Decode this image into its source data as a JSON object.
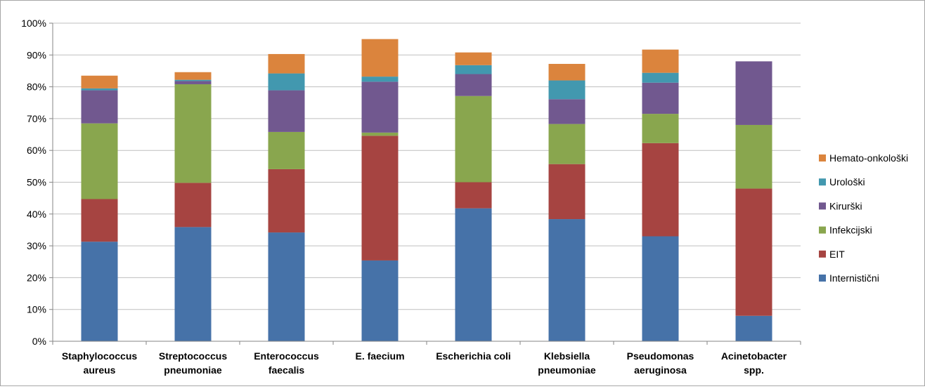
{
  "chart_data": {
    "type": "bar",
    "stacked": true,
    "title": "",
    "xlabel": "",
    "ylabel": "",
    "ylim": [
      0,
      100
    ],
    "y_ticks": [
      "0%",
      "10%",
      "20%",
      "30%",
      "40%",
      "50%",
      "60%",
      "70%",
      "80%",
      "90%",
      "100%"
    ],
    "grid": true,
    "legend_position": "right",
    "categories": [
      [
        "Staphylococcus",
        "aureus"
      ],
      [
        "Streptococcus",
        "pneumoniae"
      ],
      [
        "Enterococcus",
        "faecalis"
      ],
      [
        "E. faecium"
      ],
      [
        "Escherichia coli"
      ],
      [
        "Klebsiella",
        "pneumoniae"
      ],
      [
        "Pseudomonas",
        "aeruginosa"
      ],
      [
        "Acinetobacter",
        "spp."
      ]
    ],
    "series": [
      {
        "name": "Internistični",
        "color": "#4672A8",
        "values": [
          31.3,
          35.9,
          34.2,
          25.4,
          41.8,
          38.4,
          33.0,
          8.0
        ]
      },
      {
        "name": "EIT",
        "color": "#A64441",
        "values": [
          13.4,
          13.9,
          19.9,
          39.2,
          8.2,
          17.3,
          29.3,
          40.0
        ]
      },
      {
        "name": "Infekcijski",
        "color": "#89A64E",
        "values": [
          23.8,
          31.0,
          11.7,
          1.0,
          27.1,
          12.6,
          9.2,
          20.0
        ]
      },
      {
        "name": "Kiruški",
        "color": "#71588F",
        "values": [
          10.4,
          1.0,
          13.1,
          16.0,
          6.9,
          7.8,
          9.8,
          20.0
        ]
      },
      {
        "name": "Urološki",
        "color": "#4298AF",
        "values": [
          0.6,
          0.4,
          5.3,
          1.6,
          2.8,
          5.9,
          3.1,
          0.0
        ]
      },
      {
        "name": "Hemato-onkološki",
        "color": "#DB843D",
        "values": [
          4.0,
          2.4,
          6.1,
          11.8,
          4.0,
          5.2,
          7.3,
          0.0
        ]
      }
    ],
    "legend_order": [
      "Hemato-onkološki",
      "Urološki",
      "Kiruški",
      "Infekcijski",
      "EIT",
      "Internistični"
    ],
    "legend_labels": {
      "Hemato-onkološki": "Hemato-onkološki",
      "Urološki": "Urološki",
      "Kiruški": "Kirurški",
      "Infekcijski": "Infekcijski",
      "EIT": "EIT",
      "Internistični": "Internistični"
    }
  }
}
